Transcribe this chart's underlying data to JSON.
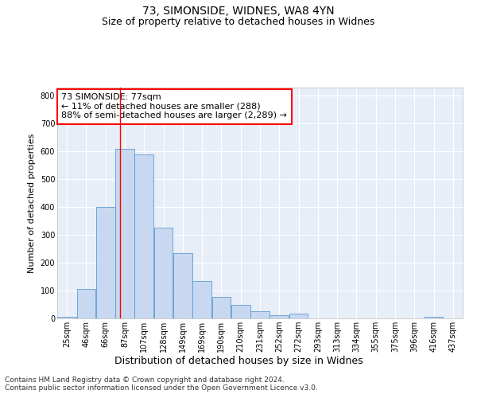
{
  "title": "73, SIMONSIDE, WIDNES, WA8 4YN",
  "subtitle": "Size of property relative to detached houses in Widnes",
  "xlabel": "Distribution of detached houses by size in Widnes",
  "ylabel": "Number of detached properties",
  "categories": [
    "25sqm",
    "46sqm",
    "66sqm",
    "87sqm",
    "107sqm",
    "128sqm",
    "149sqm",
    "169sqm",
    "190sqm",
    "210sqm",
    "231sqm",
    "252sqm",
    "272sqm",
    "293sqm",
    "313sqm",
    "334sqm",
    "355sqm",
    "375sqm",
    "396sqm",
    "416sqm",
    "437sqm"
  ],
  "values": [
    5,
    105,
    400,
    610,
    590,
    325,
    235,
    135,
    77,
    50,
    25,
    12,
    17,
    1,
    0,
    0,
    0,
    0,
    0,
    5,
    0
  ],
  "bar_color": "#c8d8f0",
  "bar_edge_color": "#5b9bd5",
  "ylim": [
    0,
    830
  ],
  "yticks": [
    0,
    100,
    200,
    300,
    400,
    500,
    600,
    700,
    800
  ],
  "red_line_x": 2.75,
  "annotation_text": "73 SIMONSIDE: 77sqm\n← 11% of detached houses are smaller (288)\n88% of semi-detached houses are larger (2,289) →",
  "footer_text": "Contains HM Land Registry data © Crown copyright and database right 2024.\nContains public sector information licensed under the Open Government Licence v3.0.",
  "fig_bg_color": "#ffffff",
  "plot_bg_color": "#e8eef8",
  "grid_color": "#ffffff",
  "title_fontsize": 10,
  "subtitle_fontsize": 9,
  "xlabel_fontsize": 9,
  "ylabel_fontsize": 8,
  "tick_fontsize": 7,
  "annotation_fontsize": 8,
  "footer_fontsize": 6.5
}
